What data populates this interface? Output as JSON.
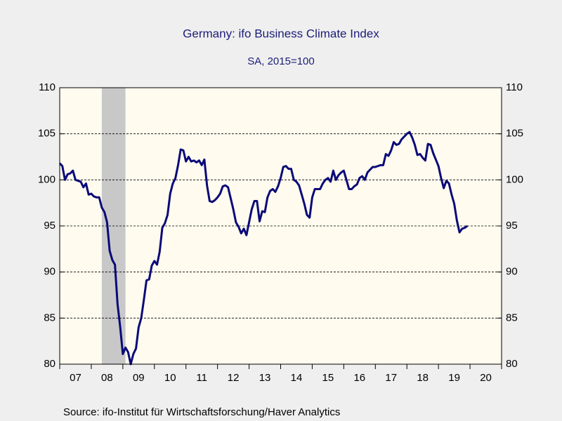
{
  "chart_data": {
    "type": "line",
    "title": "Germany: ifo Business Climate Index",
    "subtitle": "SA, 2015=100",
    "source": "Source:  ifo-Institut für Wirtschaftsforschung/Haver Analytics",
    "xlim": [
      2007,
      2021
    ],
    "xticks": [
      {
        "value": 2007,
        "label": "07"
      },
      {
        "value": 2008,
        "label": "08"
      },
      {
        "value": 2009,
        "label": "09"
      },
      {
        "value": 2010,
        "label": "10"
      },
      {
        "value": 2011,
        "label": "11"
      },
      {
        "value": 2012,
        "label": "12"
      },
      {
        "value": 2013,
        "label": "13"
      },
      {
        "value": 2014,
        "label": "14"
      },
      {
        "value": 2015,
        "label": "15"
      },
      {
        "value": 2016,
        "label": "16"
      },
      {
        "value": 2017,
        "label": "17"
      },
      {
        "value": 2018,
        "label": "18"
      },
      {
        "value": 2019,
        "label": "19"
      },
      {
        "value": 2020,
        "label": "20"
      }
    ],
    "ylim": [
      80,
      110
    ],
    "yticks": [
      80,
      85,
      90,
      95,
      100,
      105,
      110
    ],
    "grid": true,
    "shaded_ranges": [
      [
        2008.333,
        2009.083
      ]
    ],
    "shade_color": "#c8c8c8",
    "x": [
      2007,
      2007.083,
      2007.167,
      2007.25,
      2007.333,
      2007.417,
      2007.5,
      2007.583,
      2007.667,
      2007.75,
      2007.833,
      2007.917,
      2008,
      2008.083,
      2008.167,
      2008.25,
      2008.333,
      2008.417,
      2008.5,
      2008.583,
      2008.667,
      2008.75,
      2008.833,
      2008.917,
      2009,
      2009.083,
      2009.167,
      2009.25,
      2009.333,
      2009.417,
      2009.5,
      2009.583,
      2009.667,
      2009.75,
      2009.833,
      2009.917,
      2010,
      2010.083,
      2010.167,
      2010.25,
      2010.333,
      2010.417,
      2010.5,
      2010.583,
      2010.667,
      2010.75,
      2010.833,
      2010.917,
      2011,
      2011.083,
      2011.167,
      2011.25,
      2011.333,
      2011.417,
      2011.5,
      2011.583,
      2011.667,
      2011.75,
      2011.833,
      2011.917,
      2012,
      2012.083,
      2012.167,
      2012.25,
      2012.333,
      2012.417,
      2012.5,
      2012.583,
      2012.667,
      2012.75,
      2012.833,
      2012.917,
      2013,
      2013.083,
      2013.167,
      2013.25,
      2013.333,
      2013.417,
      2013.5,
      2013.583,
      2013.667,
      2013.75,
      2013.833,
      2013.917,
      2014,
      2014.083,
      2014.167,
      2014.25,
      2014.333,
      2014.417,
      2014.5,
      2014.583,
      2014.667,
      2014.75,
      2014.833,
      2014.917,
      2015,
      2015.083,
      2015.167,
      2015.25,
      2015.333,
      2015.417,
      2015.5,
      2015.583,
      2015.667,
      2015.75,
      2015.833,
      2015.917,
      2016,
      2016.083,
      2016.167,
      2016.25,
      2016.333,
      2016.417,
      2016.5,
      2016.583,
      2016.667,
      2016.75,
      2016.833,
      2016.917,
      2017,
      2017.083,
      2017.167,
      2017.25,
      2017.333,
      2017.417,
      2017.5,
      2017.583,
      2017.667,
      2017.75,
      2017.833,
      2017.917,
      2018,
      2018.083,
      2018.167,
      2018.25,
      2018.333,
      2018.417,
      2018.5,
      2018.583,
      2018.667,
      2018.75,
      2018.833,
      2018.917,
      2019,
      2019.083,
      2019.167,
      2019.25,
      2019.333,
      2019.417,
      2019.5,
      2019.583,
      2019.667,
      2019.75,
      2019.833,
      2019.917
    ],
    "series": [
      {
        "name": "ifo Business Climate Index",
        "color": "#0a0a78",
        "values": [
          101.8,
          101.5,
          100.0,
          100.6,
          100.7,
          101.0,
          100.0,
          99.9,
          99.8,
          99.2,
          99.6,
          98.4,
          98.5,
          98.2,
          98.1,
          98.1,
          97.0,
          96.5,
          95.4,
          92.3,
          91.3,
          90.8,
          86.5,
          84.0,
          81.1,
          81.8,
          81.3,
          80.0,
          81.1,
          81.7,
          84.0,
          85.0,
          87.0,
          89.1,
          89.2,
          90.7,
          91.2,
          90.8,
          92.2,
          94.8,
          95.3,
          96.2,
          98.5,
          99.6,
          100.2,
          101.6,
          103.3,
          103.2,
          102.0,
          102.5,
          102.0,
          102.1,
          101.9,
          102.1,
          101.6,
          102.2,
          99.4,
          97.7,
          97.6,
          97.8,
          98.1,
          98.5,
          99.3,
          99.4,
          99.2,
          98.0,
          96.8,
          95.4,
          94.9,
          94.2,
          94.7,
          94.0,
          95.4,
          96.8,
          97.7,
          97.7,
          95.5,
          96.6,
          96.5,
          98.1,
          98.8,
          99.0,
          98.7,
          99.3,
          100.2,
          101.4,
          101.5,
          101.2,
          101.2,
          100.0,
          99.8,
          99.4,
          98.4,
          97.4,
          96.2,
          95.9,
          98.1,
          99.0,
          99.0,
          99.0,
          99.6,
          100.0,
          100.2,
          99.8,
          101.0,
          100.0,
          100.5,
          100.8,
          101.0,
          100.0,
          99.0,
          99.0,
          99.3,
          99.5,
          100.2,
          100.4,
          100.0,
          100.8,
          101.1,
          101.4,
          101.4,
          101.5,
          101.6,
          101.6,
          102.8,
          102.6,
          103.2,
          104.1,
          103.8,
          103.9,
          104.4,
          104.7,
          105.0,
          105.2,
          104.6,
          103.8,
          102.7,
          102.8,
          102.4,
          102.1,
          103.9,
          103.8,
          102.9,
          102.2,
          101.5,
          100.2,
          99.1,
          99.9,
          99.6,
          98.4,
          97.4,
          95.6,
          94.3,
          94.7,
          94.8,
          95.0
        ]
      }
    ]
  }
}
